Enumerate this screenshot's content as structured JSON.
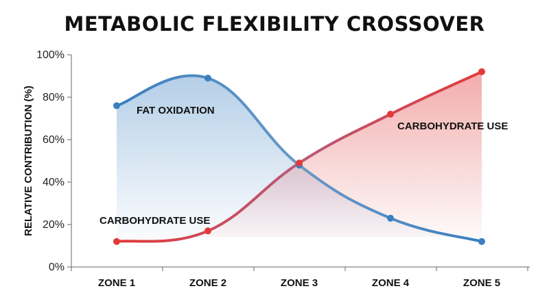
{
  "chart_data": {
    "type": "line",
    "title": "METABOLIC FLEXIBILITY CROSSOVER",
    "xlabel": "",
    "ylabel": "RELATIVE CONTRIBUTION (%)",
    "categories": [
      "ZONE 1",
      "ZONE 2",
      "ZONE 3",
      "ZONE 4",
      "ZONE 5"
    ],
    "ylim": [
      0,
      100
    ],
    "yticks": [
      0,
      20,
      40,
      60,
      80,
      100
    ],
    "ytick_labels": [
      "0%",
      "20%",
      "40%",
      "60%",
      "80%",
      "100%"
    ],
    "grid": false,
    "series": [
      {
        "name": "FAT OXIDATION",
        "values": [
          76,
          89,
          48,
          23,
          12
        ],
        "color": "#3a7fc0"
      },
      {
        "name": "CARBOHYDRATE USE",
        "values": [
          12,
          17,
          49,
          72,
          92
        ],
        "color": "#e23a3a"
      }
    ],
    "annotations": {
      "fat_label": "FAT OXIDATION",
      "carb_label_left": "CARBOHYDRATE USE",
      "carb_label_right": "CARBOHYDRATE USE"
    }
  }
}
